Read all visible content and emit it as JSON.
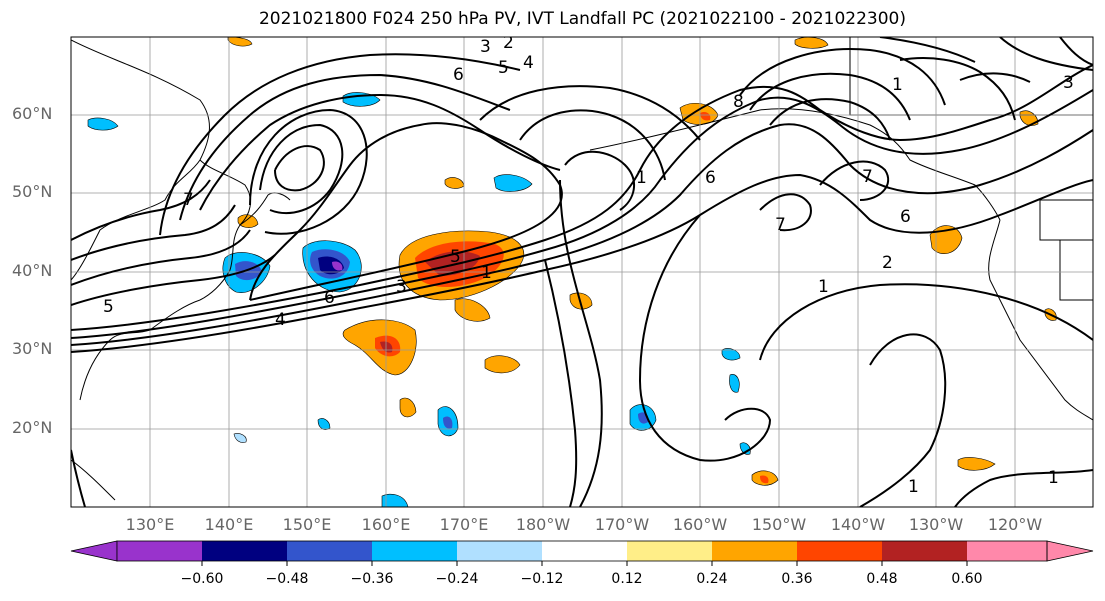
{
  "title": "2021021800 F024 250 hPa PV, IVT Landfall PC (2021022100 - 2021022300)",
  "lat_labels": [
    "60°N",
    "50°N",
    "40°N",
    "30°N",
    "20°N"
  ],
  "lon_labels": [
    "130°E",
    "140°E",
    "150°E",
    "160°E",
    "170°E",
    "180°W",
    "170°W",
    "160°W",
    "150°W",
    "140°W",
    "130°W",
    "120°W"
  ],
  "colorbar": {
    "colors": [
      "#9933cc",
      "#000080",
      "#3355cc",
      "#00bfff",
      "#b0e0ff",
      "#ffffff",
      "#ffee88",
      "#ffa500",
      "#ff4500",
      "#b22222",
      "#ff88aa"
    ],
    "ticks": [
      "−0.60",
      "−0.48",
      "−0.36",
      "−0.24",
      "−0.12",
      "0.12",
      "0.24",
      "0.36",
      "0.48",
      "0.60"
    ]
  },
  "contour_labels": [
    "3",
    "2",
    "4",
    "5",
    "6",
    "8",
    "1",
    "7",
    "3",
    "6",
    "1",
    "7",
    "6",
    "5",
    "7",
    "4",
    "6",
    "5",
    "3",
    "1",
    "2",
    "1",
    "1",
    "1"
  ]
}
